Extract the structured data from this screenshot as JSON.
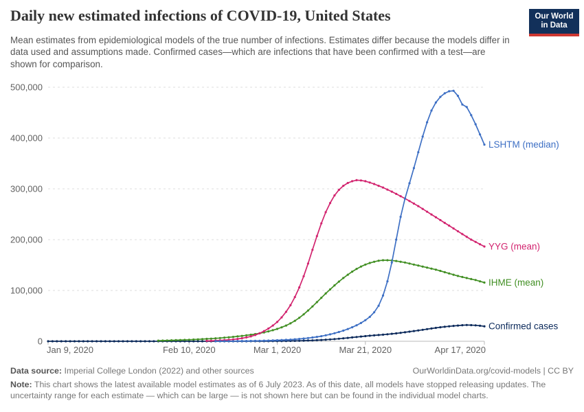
{
  "header": {
    "title": "Daily new estimated infections of COVID-19, United States",
    "subtitle": "Mean estimates from epidemiological models of the true number of infections. Estimates differ because the models differ in data used and assumptions made. Confirmed cases—which are infections that have been confirmed with a test—are shown for comparison.",
    "logo": {
      "line1": "Our World",
      "line2": "in Data"
    }
  },
  "footer": {
    "data_source_label": "Data source:",
    "data_source_text": " Imperial College London (2022) and other sources",
    "link_text": "OurWorldinData.org/covid-models | CC BY",
    "note_label": "Note:",
    "note_text": " This chart shows the latest available model estimates as of 6 July 2023. As of this date, all models have stopped releasing updates. The uncertainty range for each estimate — which can be large — is not shown here but can be found in the individual model charts."
  },
  "colors": {
    "lshtm_blue": "#3d6fc4",
    "yyg_pink": "#d2246f",
    "ihme_green": "#418f23",
    "confirmed_navy": "#0c2a5b",
    "grid": "#dedede",
    "axis": "#b8b8b8",
    "tick_text": "#616161",
    "logo_bg": "#12305a",
    "logo_stripe": "#cd3731"
  },
  "chart_data": {
    "type": "line",
    "title": "Daily new estimated infections of COVID-19, United States",
    "xlabel": "",
    "ylabel": "",
    "grid": true,
    "legend_position": "right-edge-labels",
    "x_axis": {
      "unit": "days since Jan 9, 2020",
      "range_days": [
        0,
        99
      ],
      "ticks": [
        {
          "day": 0,
          "label": "Jan 9, 2020"
        },
        {
          "day": 32,
          "label": "Feb 10, 2020"
        },
        {
          "day": 52,
          "label": "Mar 1, 2020"
        },
        {
          "day": 72,
          "label": "Mar 21, 2020"
        },
        {
          "day": 99,
          "label": "Apr 17, 2020"
        }
      ]
    },
    "y_axis": {
      "min": 0,
      "max": 500000,
      "ticks": [
        {
          "value": 0,
          "label": "0"
        },
        {
          "value": 100000,
          "label": "100,000"
        },
        {
          "value": 200000,
          "label": "200,000"
        },
        {
          "value": 300000,
          "label": "300,000"
        },
        {
          "value": 400000,
          "label": "400,000"
        },
        {
          "value": 500000,
          "label": "500,000"
        }
      ]
    },
    "series": [
      {
        "name": "Confirmed cases",
        "id": "confirmed-cases",
        "color": "#0c2a5b",
        "start_day": 0,
        "values": [
          0,
          0,
          0,
          0,
          0,
          0,
          0,
          0,
          0,
          0,
          0,
          0,
          0,
          0,
          0,
          0,
          0,
          0,
          0,
          0,
          0,
          0,
          0,
          0,
          0,
          0,
          0,
          0,
          0,
          0,
          0,
          0,
          0,
          0,
          0,
          0,
          0,
          0,
          0,
          0,
          0,
          0,
          30,
          40,
          50,
          60,
          80,
          100,
          120,
          150,
          200,
          260,
          330,
          420,
          530,
          660,
          820,
          1000,
          1250,
          1500,
          1800,
          2200,
          2600,
          3100,
          3700,
          4300,
          5000,
          5800,
          6600,
          7500,
          8400,
          9300,
          10100,
          10900,
          11600,
          12300,
          13000,
          13800,
          14700,
          15600,
          16600,
          17700,
          18900,
          20100,
          21300,
          22600,
          23900,
          25200,
          26400,
          27500,
          28500,
          29400,
          30300,
          31000,
          31600,
          32000,
          31800,
          31300,
          30500,
          29500
        ]
      },
      {
        "name": "IHME (mean)",
        "id": "ihme-mean",
        "color": "#418f23",
        "start_day": 25,
        "values": [
          1200,
          1400,
          1600,
          1900,
          2100,
          2400,
          2700,
          3000,
          3400,
          3800,
          4200,
          4700,
          5200,
          5800,
          6400,
          7100,
          7900,
          8700,
          9600,
          10600,
          11700,
          12900,
          14200,
          15700,
          17400,
          19400,
          21700,
          24300,
          27400,
          31000,
          35300,
          40300,
          46200,
          53000,
          60500,
          68500,
          77000,
          85500,
          94000,
          102000,
          110000,
          117500,
          124500,
          131000,
          137000,
          142500,
          147000,
          151000,
          154000,
          156500,
          158500,
          159500,
          159500,
          159000,
          158000,
          156500,
          155000,
          153000,
          151000,
          149000,
          147000,
          145000,
          143000,
          141000,
          138500,
          136000,
          133500,
          131000,
          128500,
          126500,
          124500,
          122500,
          120500,
          118000,
          115500
        ]
      },
      {
        "name": "YYG (mean)",
        "id": "yyg-mean",
        "color": "#d2246f",
        "start_day": 36,
        "values": [
          800,
          1000,
          1300,
          1700,
          2200,
          2800,
          3600,
          4600,
          5900,
          7500,
          9600,
          12300,
          15700,
          20000,
          25000,
          31000,
          38000,
          47000,
          58000,
          71000,
          87000,
          106000,
          128000,
          153000,
          180000,
          207000,
          232000,
          254000,
          272000,
          287000,
          298000,
          306000,
          311500,
          315000,
          317000,
          316500,
          315000,
          312500,
          309500,
          306000,
          302500,
          298500,
          294500,
          290000,
          285500,
          281000,
          276000,
          271000,
          266000,
          260500,
          255000,
          249500,
          244000,
          238500,
          233000,
          227500,
          222000,
          216500,
          211000,
          205500,
          200000,
          195500,
          191000,
          186500
        ]
      },
      {
        "name": "LSHTM (median)",
        "id": "lshtm-median",
        "color": "#3d6fc4",
        "start_day": 38,
        "values": [
          150,
          180,
          220,
          270,
          330,
          400,
          480,
          580,
          700,
          840,
          1000,
          1200,
          1400,
          1700,
          2000,
          2400,
          2800,
          3300,
          3900,
          4600,
          5400,
          6300,
          7400,
          8600,
          10000,
          11700,
          13600,
          15800,
          18300,
          21000,
          24000,
          27500,
          31500,
          36000,
          41500,
          48000,
          57000,
          70000,
          90000,
          118000,
          155000,
          200000,
          245000,
          281000,
          311000,
          341000,
          372000,
          403000,
          431000,
          454000,
          470000,
          481000,
          488000,
          492000,
          493000,
          483000,
          466000,
          461000,
          445000,
          427000,
          407000,
          387000
        ]
      }
    ]
  }
}
